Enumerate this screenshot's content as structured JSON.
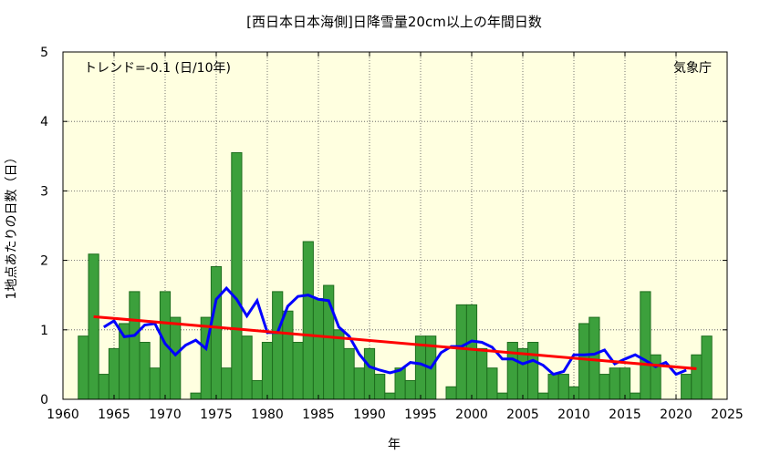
{
  "chart_data": {
    "type": "bar",
    "title": "[西日本日本海側]日降雪量20cm以上の年間日数",
    "xlabel": "年",
    "ylabel": "1地点あたりの日数（日）",
    "trend_label": "トレンド=-0.1 (日/10年)",
    "source_label": "気象庁",
    "xlim": [
      1960,
      2025
    ],
    "ylim": [
      0,
      5
    ],
    "xticks": [
      1960,
      1965,
      1970,
      1975,
      1980,
      1985,
      1990,
      1995,
      2000,
      2005,
      2010,
      2015,
      2020,
      2025
    ],
    "yticks": [
      0,
      1,
      2,
      3,
      4,
      5
    ],
    "grid": true,
    "colors": {
      "background": "#ffffe0",
      "bar_fill": "#3ca03c",
      "bar_edge": "#1e6e1e",
      "moving_avg": "#0000ff",
      "trend": "#ff0000",
      "grid": "#555555"
    },
    "series": [
      {
        "kind": "bar",
        "x": [
          1962,
          1963,
          1964,
          1965,
          1966,
          1967,
          1968,
          1969,
          1970,
          1971,
          1972,
          1973,
          1974,
          1975,
          1976,
          1977,
          1978,
          1979,
          1980,
          1981,
          1982,
          1983,
          1984,
          1985,
          1986,
          1987,
          1988,
          1989,
          1990,
          1991,
          1992,
          1993,
          1994,
          1995,
          1996,
          1997,
          1998,
          1999,
          2000,
          2001,
          2002,
          2003,
          2004,
          2005,
          2006,
          2007,
          2008,
          2009,
          2010,
          2011,
          2012,
          2013,
          2014,
          2015,
          2016,
          2017,
          2018,
          2019,
          2020,
          2021,
          2022,
          2023
        ],
        "values": [
          0.91,
          2.09,
          0.36,
          0.73,
          1.09,
          1.55,
          0.82,
          0.45,
          1.55,
          1.18,
          0.0,
          0.09,
          1.18,
          1.91,
          0.45,
          3.55,
          0.91,
          0.27,
          0.82,
          1.55,
          1.27,
          0.82,
          2.27,
          1.45,
          1.64,
          1.0,
          0.73,
          0.45,
          0.73,
          0.36,
          0.09,
          0.45,
          0.27,
          0.91,
          0.91,
          0.0,
          0.18,
          1.36,
          1.36,
          0.73,
          0.45,
          0.09,
          0.82,
          0.73,
          0.82,
          0.09,
          0.36,
          0.36,
          0.18,
          1.09,
          1.18,
          0.36,
          0.45,
          0.45,
          0.09,
          1.55,
          0.64,
          0.0,
          0.0,
          0.36,
          0.64,
          0.91
        ]
      },
      {
        "kind": "line",
        "x": [
          1964,
          1965,
          1966,
          1967,
          1968,
          1969,
          1970,
          1971,
          1972,
          1973,
          1974,
          1975,
          1976,
          1977,
          1978,
          1979,
          1980,
          1981,
          1982,
          1983,
          1984,
          1985,
          1986,
          1987,
          1988,
          1989,
          1990,
          1991,
          1992,
          1993,
          1994,
          1995,
          1996,
          1997,
          1998,
          1999,
          2000,
          2001,
          2002,
          2003,
          2004,
          2005,
          2006,
          2007,
          2008,
          2009,
          2010,
          2011,
          2012,
          2013,
          2014,
          2015,
          2016,
          2017,
          2018,
          2019,
          2020,
          2021
        ],
        "values": [
          1.04,
          1.13,
          0.9,
          0.92,
          1.07,
          1.09,
          0.8,
          0.64,
          0.78,
          0.85,
          0.73,
          1.44,
          1.6,
          1.44,
          1.2,
          1.42,
          0.96,
          0.96,
          1.34,
          1.48,
          1.5,
          1.44,
          1.42,
          1.04,
          0.91,
          0.65,
          0.47,
          0.42,
          0.38,
          0.42,
          0.53,
          0.51,
          0.45,
          0.67,
          0.76,
          0.76,
          0.84,
          0.82,
          0.75,
          0.58,
          0.58,
          0.51,
          0.56,
          0.49,
          0.36,
          0.4,
          0.64,
          0.64,
          0.65,
          0.71,
          0.51,
          0.58,
          0.64,
          0.56,
          0.47,
          0.53,
          0.36,
          0.42
        ]
      },
      {
        "kind": "trend",
        "x": [
          1963,
          2022
        ],
        "values": [
          1.19,
          0.44
        ]
      }
    ]
  }
}
